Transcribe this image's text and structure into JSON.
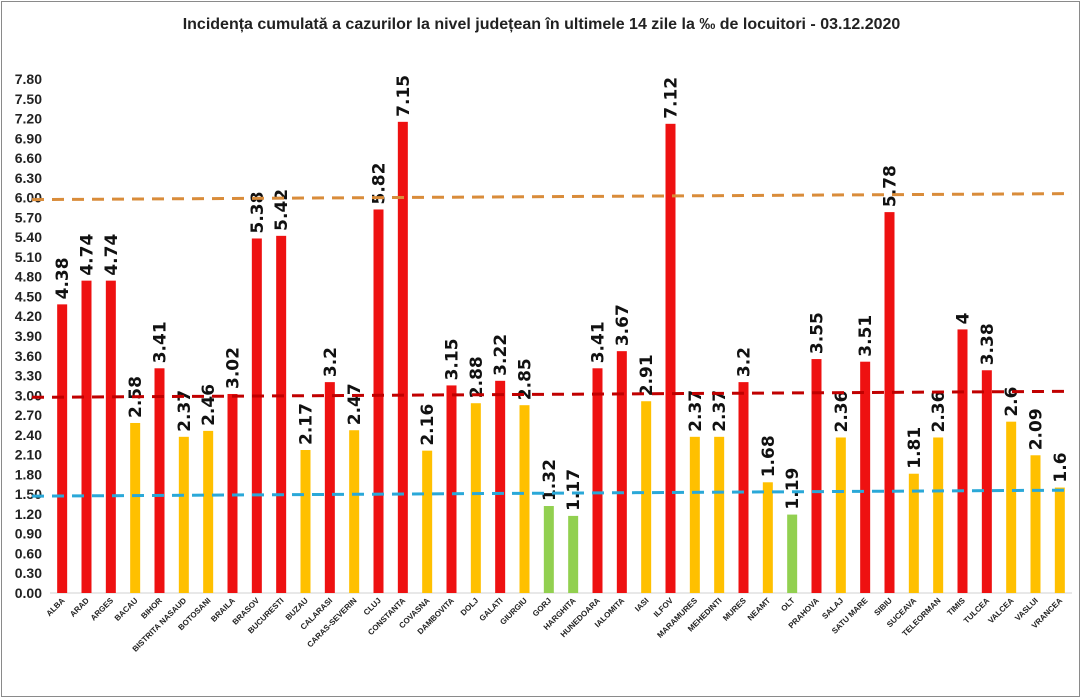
{
  "chart_data": {
    "type": "bar",
    "title": "Incidența cumulată a cazurilor la nivel județean în ultimele 14 zile la ‰ de locuitori - 03.12.2020",
    "xlabel": "",
    "ylabel": "",
    "ylim": [
      0,
      7.8
    ],
    "ytick_step": 0.3,
    "ytick_labels": [
      "0.00",
      "0.30",
      "0.60",
      "0.90",
      "1.20",
      "1.50",
      "1.80",
      "2.10",
      "2.40",
      "2.70",
      "3.00",
      "3.30",
      "3.60",
      "3.90",
      "4.20",
      "4.50",
      "4.80",
      "5.10",
      "5.40",
      "5.70",
      "6.00",
      "6.30",
      "6.60",
      "6.90",
      "7.20",
      "7.50",
      "7.80"
    ],
    "grid": false,
    "legend": "none",
    "colors": {
      "high": "#ee1111",
      "medium": "#ffc000",
      "low": "#92d050"
    },
    "categories": [
      "ALBA",
      "ARAD",
      "ARGES",
      "BACAU",
      "BIHOR",
      "BISTRITA NASAUD",
      "BOTOSANI",
      "BRAILA",
      "BRASOV",
      "BUCURESTI",
      "BUZAU",
      "CALARASI",
      "CARAS-SEVERIN",
      "CLUJ",
      "CONSTANTA",
      "COVASNA",
      "DAMBOVITA",
      "DOLJ",
      "GALATI",
      "GIURGIU",
      "GORJ",
      "HARGHITA",
      "HUNEDOARA",
      "IALOMITA",
      "IASI",
      "ILFOV",
      "MARAMURES",
      "MEHEDINTI",
      "MURES",
      "NEAMT",
      "OLT",
      "PRAHOVA",
      "SALAJ",
      "SATU MARE",
      "SIBIU",
      "SUCEAVA",
      "TELEORMAN",
      "TIMIS",
      "TULCEA",
      "VALCEA",
      "VASLUI",
      "VRANCEA"
    ],
    "values": [
      4.38,
      4.74,
      4.74,
      2.58,
      3.41,
      2.37,
      2.46,
      3.02,
      5.38,
      5.42,
      2.17,
      3.2,
      2.47,
      5.82,
      7.15,
      2.16,
      3.15,
      2.88,
      3.22,
      2.85,
      1.32,
      1.17,
      3.41,
      3.67,
      2.91,
      7.12,
      2.37,
      2.37,
      3.2,
      1.68,
      1.19,
      3.55,
      2.36,
      3.51,
      5.78,
      1.81,
      2.36,
      4,
      3.38,
      2.6,
      2.09,
      1.6
    ],
    "labels": [
      "4.38",
      "4.74",
      "4.74",
      "2.58",
      "3.41",
      "2.37",
      "2.46",
      "3.02",
      "5.38",
      "5.42",
      "2.17",
      "3.2",
      "2.47",
      "5.82",
      "7.15",
      "2.16",
      "3.15",
      "2.88",
      "3.22",
      "2.85",
      "1.32",
      "1.17",
      "3.41",
      "3.67",
      "2.91",
      "7.12",
      "2.37",
      "2.37",
      "3.2",
      "1.68",
      "1.19",
      "3.55",
      "2.36",
      "3.51",
      "5.78",
      "1.81",
      "2.36",
      "4",
      "3.38",
      "2.6",
      "2.09",
      "1.6"
    ],
    "reference_lines": [
      {
        "value": 6.0,
        "color": "#d98c3a"
      },
      {
        "value": 3.0,
        "color": "#c00000"
      },
      {
        "value": 1.5,
        "color": "#2aa8d8"
      }
    ]
  }
}
